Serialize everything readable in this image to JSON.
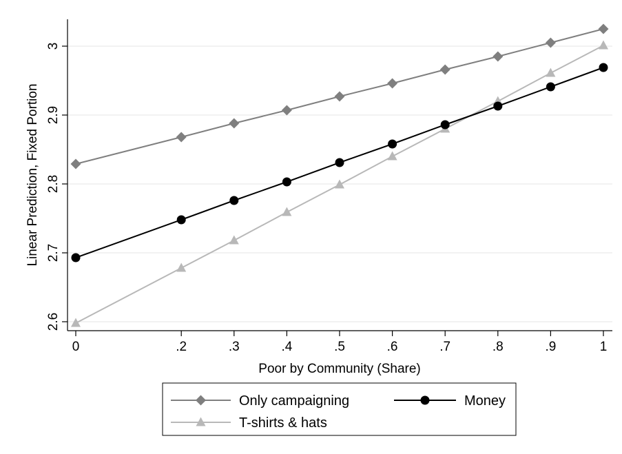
{
  "chart_data": {
    "type": "line",
    "xlabel": "Poor by Community (Share)",
    "ylabel": "Linear Prediction, Fixed Portion",
    "x": [
      0,
      0.2,
      0.3,
      0.4,
      0.5,
      0.6,
      0.7,
      0.8,
      0.9,
      1
    ],
    "x_tick_values": [
      0,
      0.2,
      0.3,
      0.4,
      0.5,
      0.6,
      0.7,
      0.8,
      0.9,
      1
    ],
    "x_tick_labels": [
      "0",
      ".2",
      ".3",
      ".4",
      ".5",
      ".6",
      ".7",
      ".8",
      ".9",
      "1"
    ],
    "y_tick_values": [
      2.6,
      2.7,
      2.8,
      2.9,
      3
    ],
    "y_tick_labels": [
      "2.6",
      "2.7",
      "2.8",
      "2.9",
      "3"
    ],
    "xlim": [
      0,
      1
    ],
    "ylim": [
      2.6,
      3.025
    ],
    "grid": true,
    "legend_position": "bottom",
    "series": [
      {
        "name": "Only campaigning",
        "marker": "diamond",
        "color": "#7f7f7f",
        "values": [
          2.829,
          2.868,
          2.888,
          2.907,
          2.927,
          2.946,
          2.966,
          2.985,
          3.005,
          3.025
        ]
      },
      {
        "name": "Money",
        "marker": "circle",
        "color": "#000000",
        "values": [
          2.693,
          2.748,
          2.776,
          2.803,
          2.831,
          2.858,
          2.886,
          2.913,
          2.941,
          2.969
        ]
      },
      {
        "name": "T-shirts & hats",
        "marker": "triangle",
        "color": "#b8b8b8",
        "values": [
          2.598,
          2.678,
          2.718,
          2.759,
          2.799,
          2.84,
          2.88,
          2.92,
          2.961,
          3.001
        ]
      }
    ]
  }
}
